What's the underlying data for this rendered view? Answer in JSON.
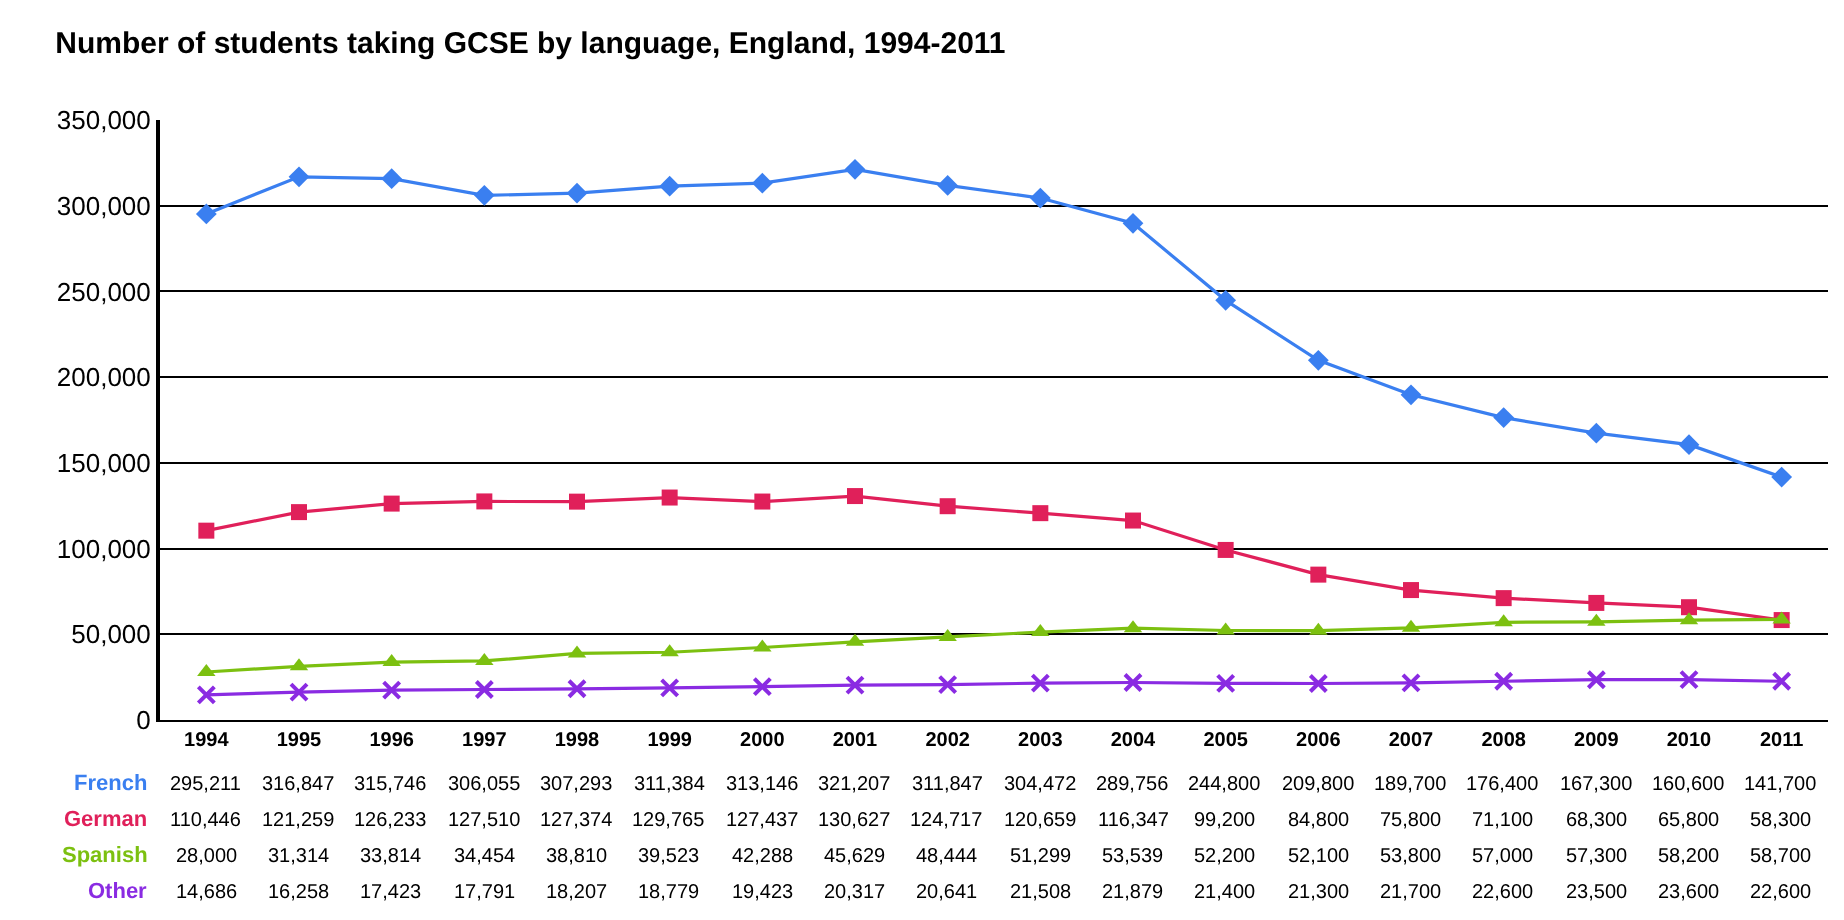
{
  "chart_data": {
    "type": "line",
    "title": "Number of students taking GCSE by language, England, 1994-2011",
    "categories": [
      "1994",
      "1995",
      "1996",
      "1997",
      "1998",
      "1999",
      "2000",
      "2001",
      "2002",
      "2003",
      "2004",
      "2005",
      "2006",
      "2007",
      "2008",
      "2009",
      "2010",
      "2011"
    ],
    "series": [
      {
        "name": "French",
        "color": "#3a7ff0",
        "marker": "diamond",
        "values": [
          295211,
          316847,
          315746,
          306055,
          307293,
          311384,
          313146,
          321207,
          311847,
          304472,
          289756,
          244800,
          209800,
          189700,
          176400,
          167300,
          160600,
          141700
        ],
        "value_labels": [
          "295,211",
          "316,847",
          "315,746",
          "306,055",
          "307,293",
          "311,384",
          "313,146",
          "321,207",
          "311,847",
          "304,472",
          "289,756",
          "244,800",
          "209,800",
          "189,700",
          "176,400",
          "167,300",
          "160,600",
          "141,700"
        ]
      },
      {
        "name": "German",
        "color": "#e0205a",
        "marker": "square",
        "values": [
          110446,
          121259,
          126233,
          127510,
          127374,
          129765,
          127437,
          130627,
          124717,
          120659,
          116347,
          99200,
          84800,
          75800,
          71100,
          68300,
          65800,
          58300
        ],
        "value_labels": [
          "110,446",
          "121,259",
          "126,233",
          "127,510",
          "127,374",
          "129,765",
          "127,437",
          "130,627",
          "124,717",
          "120,659",
          "116,347",
          "99,200",
          "84,800",
          "75,800",
          "71,100",
          "68,300",
          "65,800",
          "58,300"
        ]
      },
      {
        "name": "Spanish",
        "color": "#7cc010",
        "marker": "triangle",
        "values": [
          28000,
          31314,
          33814,
          34454,
          38810,
          39523,
          42288,
          45629,
          48444,
          51299,
          53539,
          52200,
          52100,
          53800,
          57000,
          57300,
          58200,
          58700
        ],
        "value_labels": [
          "28,000",
          "31,314",
          "33,814",
          "34,454",
          "38,810",
          "39,523",
          "42,288",
          "45,629",
          "48,444",
          "51,299",
          "53,539",
          "52,200",
          "52,100",
          "53,800",
          "57,000",
          "57,300",
          "58,200",
          "58,700"
        ]
      },
      {
        "name": "Other",
        "color": "#8a2be2",
        "marker": "cross",
        "values": [
          14686,
          16258,
          17423,
          17791,
          18207,
          18779,
          19423,
          20317,
          20641,
          21508,
          21879,
          21400,
          21300,
          21700,
          22600,
          23500,
          23600,
          22600
        ],
        "value_labels": [
          "14,686",
          "16,258",
          "17,423",
          "17,791",
          "18,207",
          "18,779",
          "19,423",
          "20,317",
          "20,641",
          "21,508",
          "21,879",
          "21,400",
          "21,300",
          "21,700",
          "22,600",
          "23,500",
          "23,600",
          "22,600"
        ]
      }
    ],
    "ylim": [
      0,
      350000
    ],
    "yticks": [
      0,
      {
        "value": 50000,
        "label": "50,000"
      },
      {
        "value": 100000,
        "label": "100,000"
      },
      {
        "value": 150000,
        "label": "150,000"
      },
      {
        "value": 200000,
        "label": "200,000"
      },
      {
        "value": 250000,
        "label": "250,000"
      },
      {
        "value": 300000,
        "label": "300,000"
      },
      {
        "value": 350000,
        "label": "350,000"
      }
    ],
    "grid": "y",
    "legend": false
  }
}
